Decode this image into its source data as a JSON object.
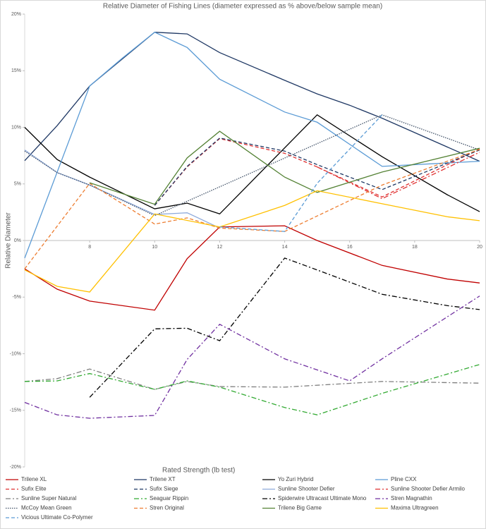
{
  "chart_data": {
    "type": "line",
    "title": "Relative Diameter of Fishing Lines (diameter expressed as % above/below sample mean)",
    "xlabel": "Rated Strength (lb test)",
    "ylabel": "Relative Diameter",
    "xlim": [
      6,
      20
    ],
    "xticks": [
      8,
      10,
      12,
      14,
      16,
      18,
      20
    ],
    "ylim": [
      -20,
      20
    ],
    "yticks": [
      {
        "value": -20,
        "label": "-20%"
      },
      {
        "value": -15,
        "label": "-15%"
      },
      {
        "value": -10,
        "label": "-10%"
      },
      {
        "value": -5,
        "label": "-5%"
      },
      {
        "value": 0,
        "label": "0%"
      },
      {
        "value": 5,
        "label": "5%"
      },
      {
        "value": 10,
        "label": "10%"
      },
      {
        "value": 15,
        "label": "15%"
      },
      {
        "value": 20,
        "label": "20%"
      }
    ],
    "series": [
      {
        "name": "Trilene XL",
        "color": "#c00000",
        "dash": "solid",
        "x": [
          6,
          7,
          8,
          10,
          11,
          12,
          14,
          15,
          17,
          19,
          20
        ],
        "values": [
          -2.5,
          -4.3,
          -5.35,
          -6.15,
          -1.6,
          1.2,
          1.3,
          0,
          -2.2,
          -3.4,
          -3.75
        ]
      },
      {
        "name": "Trilene XT",
        "color": "#1f3864",
        "dash": "solid",
        "x": [
          6,
          7,
          8,
          10,
          11,
          12,
          14,
          15,
          16,
          17,
          20
        ],
        "values": [
          7.05,
          10.15,
          13.65,
          18.4,
          18.25,
          16.6,
          14.15,
          12.95,
          11.95,
          10.8,
          7.0
        ]
      },
      {
        "name": "Yo Zuri Hybrid",
        "color": "#000000",
        "dash": "solid",
        "x": [
          6,
          7,
          8,
          10,
          11,
          12,
          15,
          17,
          19,
          20
        ],
        "values": [
          10,
          7.15,
          5.6,
          2.8,
          3.3,
          2.35,
          11.1,
          7.4,
          4.05,
          2.55
        ]
      },
      {
        "name": "Pline CXX",
        "color": "#5b9bd5",
        "dash": "solid",
        "x": [
          6,
          8,
          9,
          10,
          11,
          12,
          14,
          15,
          17,
          20
        ],
        "values": [
          -1.55,
          13.65,
          16.1,
          18.4,
          17.05,
          14.25,
          11.35,
          10.45,
          6.55,
          7.0
        ]
      },
      {
        "name": "Sufix Elite",
        "color": "#e03030",
        "dash": "dash",
        "x": [
          10,
          11,
          12,
          14,
          15,
          17,
          20
        ],
        "values": [
          3.1,
          6.5,
          9.0,
          7.7,
          6.5,
          3.85,
          8.1
        ]
      },
      {
        "name": "Sufix Siege",
        "color": "#1f3864",
        "dash": "dash",
        "x": [
          10,
          11,
          12,
          14,
          15,
          17,
          20
        ],
        "values": [
          3.1,
          6.55,
          9.05,
          7.9,
          6.7,
          4.5,
          8.0
        ]
      },
      {
        "name": "Sunline Shooter Defier",
        "color": "#8eaadb",
        "dash": "solid",
        "x": [
          6,
          7,
          8,
          10,
          11,
          12
        ],
        "values": [
          8.0,
          6.0,
          4.9,
          2.3,
          2.45,
          1.1
        ]
      },
      {
        "name": "Sunline Shooter Defier Armilo",
        "color": "#e03030",
        "dash": "dashdot",
        "x": [
          15,
          17,
          20
        ],
        "values": [
          6.5,
          3.7,
          7.8
        ]
      },
      {
        "name": "Sunline Super Natural",
        "color": "#7f7f7f",
        "dash": "dashdot",
        "x": [
          6,
          7,
          8,
          10,
          11,
          12,
          14,
          17,
          20
        ],
        "values": [
          -12.45,
          -12.2,
          -11.35,
          -13.15,
          -12.45,
          -12.9,
          -12.95,
          -12.45,
          -12.6
        ]
      },
      {
        "name": "Seaguar Rippin",
        "color": "#33aa33",
        "dash": "dashdot",
        "x": [
          6,
          7,
          8,
          10,
          11,
          12,
          14,
          15,
          17,
          20
        ],
        "values": [
          -12.45,
          -12.4,
          -11.75,
          -13.15,
          -12.4,
          -12.95,
          -14.75,
          -15.4,
          -13.5,
          -10.95
        ]
      },
      {
        "name": "Spiderwire Ultracast Ultimate Mono",
        "color": "#000000",
        "dash": "dashdot",
        "x": [
          8,
          10,
          11,
          12,
          14,
          15,
          17,
          19,
          20
        ],
        "values": [
          -13.85,
          -7.8,
          -7.75,
          -8.85,
          -1.55,
          -2.6,
          -4.75,
          -5.75,
          -6.1
        ]
      },
      {
        "name": "Stren Magnathin",
        "color": "#7030a0",
        "dash": "dashdot",
        "x": [
          6,
          7,
          8,
          10,
          11,
          12,
          14,
          16,
          17,
          20
        ],
        "values": [
          -14.3,
          -15.4,
          -15.7,
          -15.45,
          -10.5,
          -7.4,
          -10.45,
          -12.4,
          -10.45,
          -4.9
        ]
      },
      {
        "name": "McCoy Mean Green",
        "color": "#44546a",
        "dash": "dot",
        "x": [
          6,
          7,
          8,
          10,
          17,
          20
        ],
        "values": [
          7.9,
          6.0,
          4.9,
          2.2,
          11.1,
          8.0
        ]
      },
      {
        "name": "Stren Original",
        "color": "#ed7d31",
        "dash": "dash",
        "x": [
          6,
          8,
          10,
          11,
          12,
          14,
          17,
          20
        ],
        "values": [
          -2.5,
          5.05,
          1.45,
          2.0,
          1.1,
          0.8,
          4.9,
          8.05
        ]
      },
      {
        "name": "Trilene Big Game",
        "color": "#548235",
        "dash": "solid",
        "x": [
          8,
          10,
          11,
          12,
          14,
          15,
          17,
          20
        ],
        "values": [
          5.1,
          3.2,
          7.3,
          9.65,
          5.6,
          4.25,
          6.05,
          8.15
        ]
      },
      {
        "name": "Maxima Ultragreen",
        "color": "#ffc000",
        "dash": "solid",
        "x": [
          6,
          7,
          8,
          10,
          12,
          14,
          15,
          17,
          19,
          20
        ],
        "values": [
          -2.6,
          -4.05,
          -4.55,
          2.35,
          1.2,
          3.1,
          4.4,
          3.25,
          2.1,
          1.75
        ]
      },
      {
        "name": "Vicious Ultimate Co-Polymer",
        "color": "#5b9bd5",
        "dash": "dash",
        "x": [
          12,
          14,
          15,
          17
        ],
        "values": [
          1.2,
          0.8,
          5.05,
          11.1
        ]
      }
    ]
  }
}
